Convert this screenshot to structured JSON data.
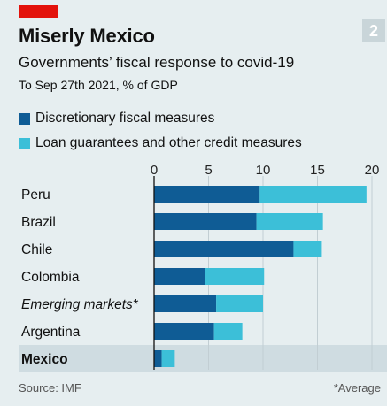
{
  "header": {
    "title": "Miserly Mexico",
    "badge": "2",
    "subtitle": "Governments’ fiscal response to covid-19",
    "caption": "To Sep 27th 2021, % of GDP"
  },
  "legend": [
    {
      "label": "Discretionary fiscal measures",
      "color": "#0f5c95"
    },
    {
      "label": "Loan guarantees and other credit measures",
      "color": "#3cbfd8"
    }
  ],
  "footer": {
    "source": "Source: IMF",
    "note": "*Average"
  },
  "colors": {
    "background": "#e6eef0",
    "highlight_row": "#cfdce1",
    "accent_red": "#e3120b"
  },
  "chart_data": {
    "type": "bar",
    "orientation": "horizontal",
    "stacked": true,
    "categories": [
      "Peru",
      "Brazil",
      "Chile",
      "Colombia",
      "Emerging markets*",
      "Argentina",
      "Mexico"
    ],
    "series": [
      {
        "name": "Discretionary fiscal measures",
        "values": [
          9.7,
          9.4,
          12.8,
          4.7,
          5.7,
          5.5,
          0.7
        ]
      },
      {
        "name": "Loan guarantees and other credit measures",
        "values": [
          9.8,
          6.1,
          2.6,
          5.4,
          4.3,
          2.6,
          1.2
        ]
      }
    ],
    "xlim": [
      0,
      20
    ],
    "xticks": [
      0,
      5,
      10,
      15,
      20
    ],
    "highlight": "Mexico",
    "italic_category": "Emerging markets*",
    "axis_position": "top"
  }
}
